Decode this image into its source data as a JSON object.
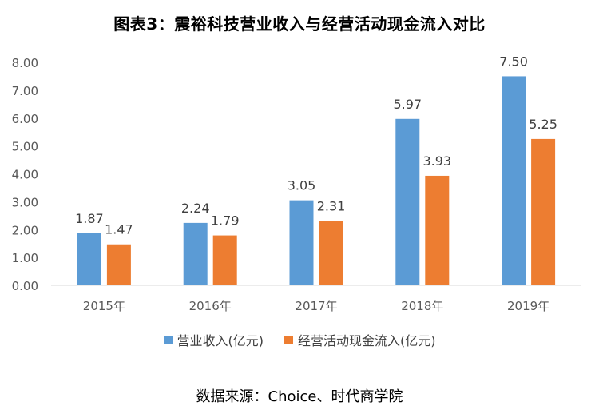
{
  "title": "图表3：震裕科技营业收入与经营活动现金流入对比",
  "source": "数据来源：Choice、时代商学院",
  "colors": {
    "revenue": "#5B9BD5",
    "cashflow": "#ED7D31",
    "axis_text": "#595959",
    "axis_line": "#D9D9D9",
    "label_text": "#404040"
  },
  "chart_data": {
    "type": "bar",
    "title": "图表3：震裕科技营业收入与经营活动现金流入对比",
    "xlabel": "",
    "ylabel": "",
    "categories": [
      "2015年",
      "2016年",
      "2017年",
      "2018年",
      "2019年"
    ],
    "series": [
      {
        "name": "营业收入(亿元)",
        "values": [
          1.87,
          2.24,
          3.05,
          5.97,
          7.5
        ],
        "labels": [
          "1.87",
          "2.24",
          "3.05",
          "5.97",
          "7.50"
        ]
      },
      {
        "name": "经营活动现金流入(亿元)",
        "values": [
          1.47,
          1.79,
          2.31,
          3.93,
          5.25
        ],
        "labels": [
          "1.47",
          "1.79",
          "2.31",
          "3.93",
          "5.25"
        ]
      }
    ],
    "ylim": [
      0,
      8
    ],
    "yticks": [
      "0.00",
      "1.00",
      "2.00",
      "3.00",
      "4.00",
      "5.00",
      "6.00",
      "7.00",
      "8.00"
    ],
    "grid": false,
    "legend": "bottom"
  }
}
